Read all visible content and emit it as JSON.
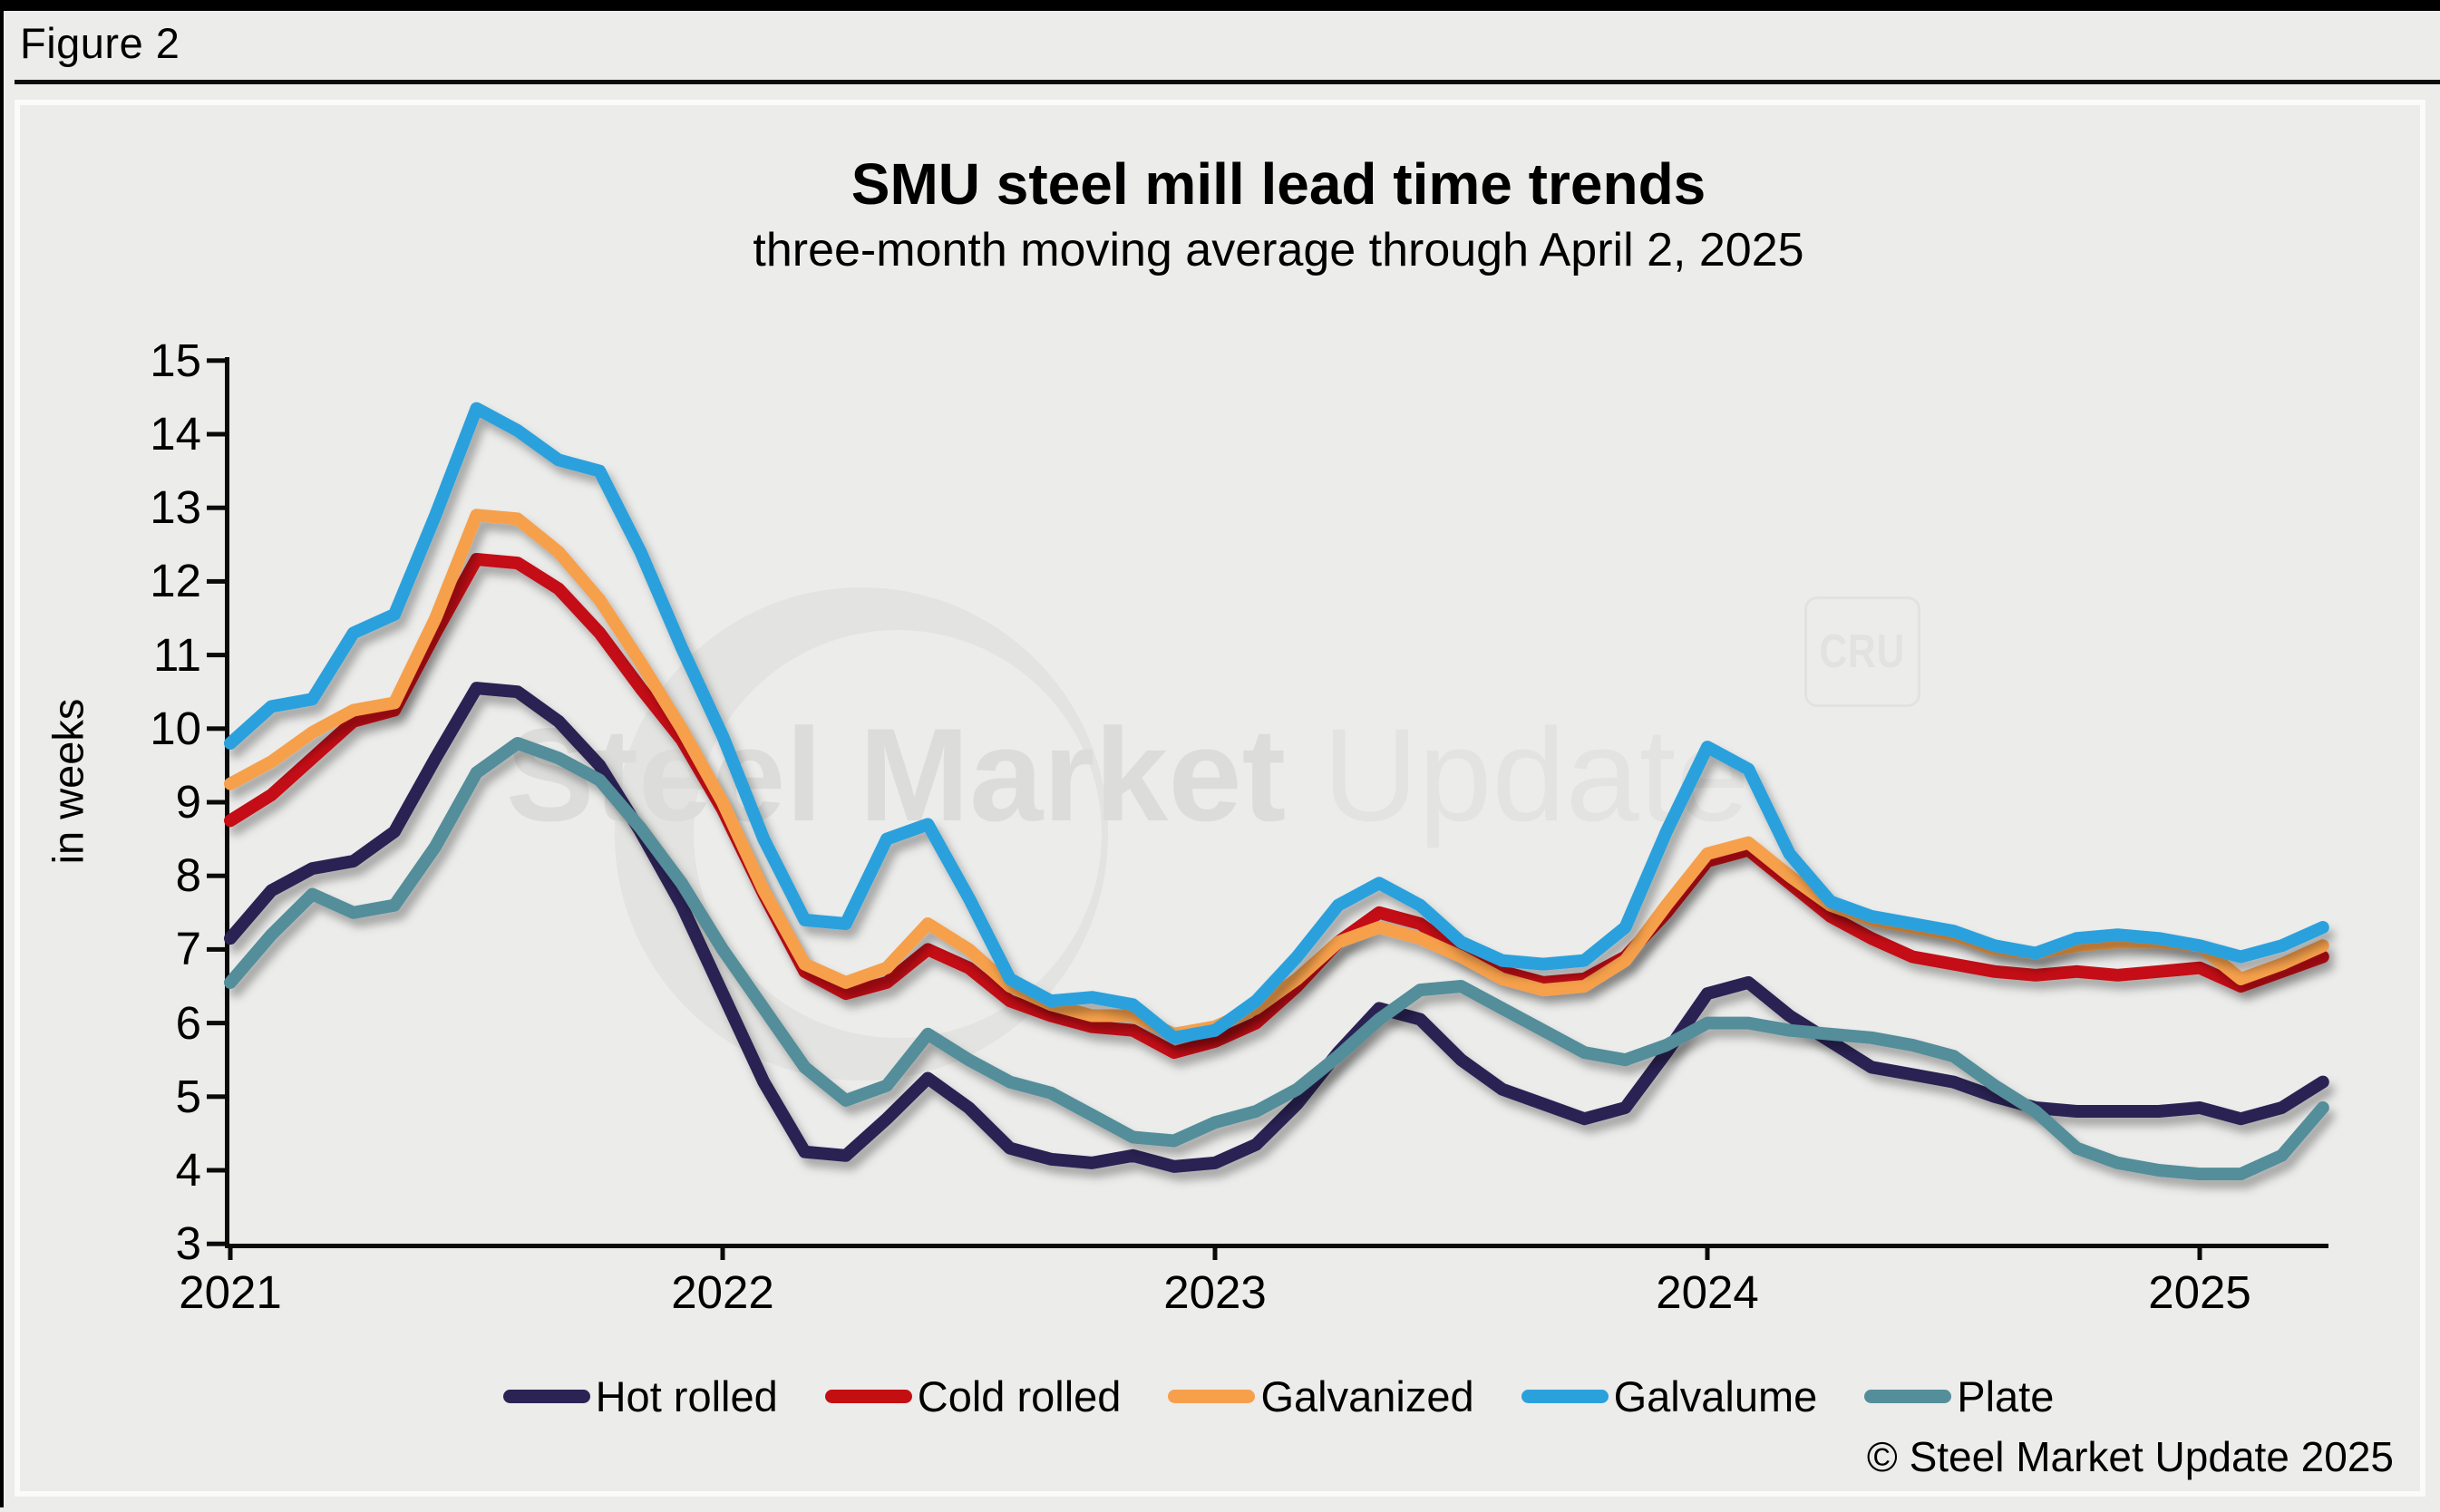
{
  "header": {
    "figure_label": "Figure 2"
  },
  "chart": {
    "title": "SMU steel mill lead time trends",
    "subtitle": "three-month moving average through April 2, 2025",
    "y_axis_label": "in weeks",
    "watermark_bold": "Steel Market",
    "watermark_light": " Update",
    "watermark_logo": "CRU",
    "copyright": "© Steel Market Update 2025",
    "background_color": "#ececeb",
    "frame_border_color": "#fbfbfa"
  },
  "chart_data": {
    "type": "line",
    "title": "SMU steel mill lead time trends",
    "subtitle": "three-month moving average through April 2, 2025",
    "ylabel": "in weeks",
    "ylim": [
      3,
      15
    ],
    "ytick_step": 1,
    "yticks": [
      15,
      14,
      13,
      12,
      11,
      10,
      9,
      8,
      7,
      6,
      5,
      4,
      3
    ],
    "xticks": [
      "2021",
      "2022",
      "2023",
      "2024",
      "2025"
    ],
    "x_sampling": "monthly from Jan 2021 through Apr 2025",
    "grid": false,
    "legend_position": "bottom",
    "series": [
      {
        "name": "Hot rolled",
        "color": "#2a2353",
        "values": [
          7.15,
          7.8,
          8.1,
          8.2,
          8.6,
          9.6,
          10.55,
          10.5,
          10.1,
          9.5,
          8.6,
          7.6,
          6.4,
          5.2,
          4.25,
          4.2,
          4.7,
          5.25,
          4.85,
          4.3,
          4.15,
          4.1,
          4.2,
          4.05,
          4.1,
          4.35,
          4.9,
          5.6,
          6.2,
          6.05,
          5.5,
          5.1,
          4.9,
          4.7,
          4.85,
          5.6,
          6.4,
          6.55,
          6.1,
          5.75,
          5.4,
          5.3,
          5.2,
          5.0,
          4.85,
          4.8,
          4.8,
          4.8,
          4.85,
          4.7,
          4.85,
          5.2
        ]
      },
      {
        "name": "Cold rolled",
        "color": "#c40f12",
        "values": [
          8.75,
          9.1,
          9.6,
          10.1,
          10.25,
          11.3,
          12.3,
          12.25,
          11.9,
          11.3,
          10.55,
          9.85,
          8.9,
          7.75,
          6.7,
          6.4,
          6.55,
          7.0,
          6.75,
          6.3,
          6.1,
          5.95,
          5.9,
          5.6,
          5.75,
          6.0,
          6.5,
          7.1,
          7.5,
          7.35,
          6.95,
          6.7,
          6.55,
          6.6,
          6.9,
          7.5,
          8.2,
          8.35,
          7.9,
          7.45,
          7.15,
          6.9,
          6.8,
          6.7,
          6.65,
          6.7,
          6.65,
          6.7,
          6.75,
          6.5,
          6.7,
          6.9
        ]
      },
      {
        "name": "Galvanized",
        "color": "#f6a04c",
        "values": [
          9.25,
          9.55,
          9.95,
          10.25,
          10.35,
          11.5,
          12.9,
          12.85,
          12.4,
          11.75,
          10.9,
          10.0,
          9.0,
          7.8,
          6.8,
          6.55,
          6.75,
          7.35,
          7.0,
          6.5,
          6.25,
          6.1,
          6.1,
          5.85,
          5.95,
          6.2,
          6.6,
          7.1,
          7.3,
          7.15,
          6.9,
          6.6,
          6.45,
          6.5,
          6.85,
          7.6,
          8.3,
          8.45,
          8.0,
          7.6,
          7.4,
          7.3,
          7.2,
          7.0,
          6.95,
          7.05,
          7.1,
          7.1,
          7.05,
          6.6,
          6.8,
          7.05
        ]
      },
      {
        "name": "Galvalume",
        "color": "#2ba1dc",
        "values": [
          9.8,
          10.3,
          10.4,
          11.3,
          11.55,
          12.9,
          14.35,
          14.05,
          13.65,
          13.5,
          12.4,
          11.1,
          9.9,
          8.5,
          7.4,
          7.35,
          8.5,
          8.7,
          7.7,
          6.6,
          6.3,
          6.35,
          6.25,
          5.8,
          5.9,
          6.3,
          6.9,
          7.6,
          7.9,
          7.6,
          7.1,
          6.85,
          6.8,
          6.85,
          7.3,
          8.6,
          9.75,
          9.45,
          8.3,
          7.65,
          7.45,
          7.35,
          7.25,
          7.05,
          6.95,
          7.15,
          7.2,
          7.15,
          7.05,
          6.9,
          7.05,
          7.3
        ]
      },
      {
        "name": "Plate",
        "color": "#538e9a",
        "values": [
          6.55,
          7.2,
          7.75,
          7.5,
          7.6,
          8.4,
          9.4,
          9.8,
          9.6,
          9.3,
          8.65,
          7.9,
          7.0,
          6.2,
          5.4,
          4.95,
          5.15,
          5.85,
          5.5,
          5.2,
          5.05,
          4.75,
          4.45,
          4.4,
          4.65,
          4.8,
          5.1,
          5.55,
          6.05,
          6.45,
          6.5,
          6.2,
          5.9,
          5.6,
          5.5,
          5.7,
          6.0,
          6.0,
          5.9,
          5.85,
          5.8,
          5.7,
          5.55,
          5.15,
          4.8,
          4.3,
          4.1,
          4.0,
          3.95,
          3.95,
          4.2,
          4.85
        ]
      }
    ]
  }
}
